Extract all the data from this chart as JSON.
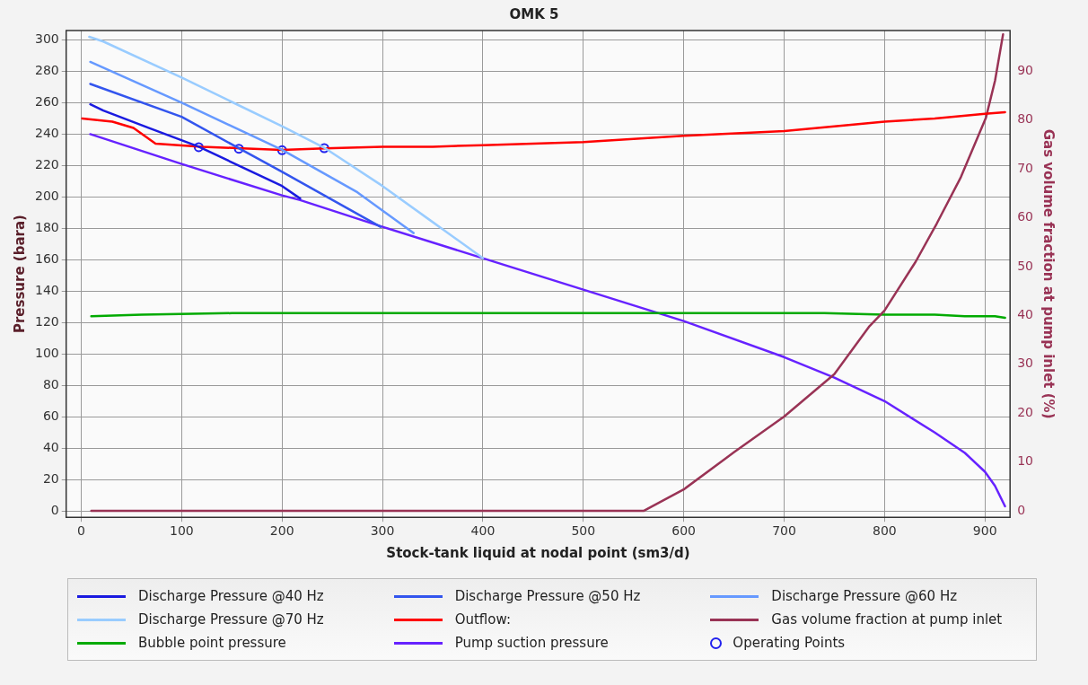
{
  "chart_data": {
    "type": "line",
    "title": "OMK 5",
    "xlabel": "Stock-tank liquid at nodal point (sm3/d)",
    "ylabel": "Pressure (bara)",
    "y2label": "Gas volume fraction at pump inlet (%)",
    "xlim": [
      -15,
      925
    ],
    "xticks": [
      0,
      100,
      200,
      300,
      400,
      500,
      600,
      700,
      800,
      900
    ],
    "ylim": [
      -4,
      306
    ],
    "yticks": [
      0,
      20,
      40,
      60,
      80,
      100,
      120,
      140,
      160,
      180,
      200,
      220,
      240,
      260,
      280,
      300
    ],
    "y2lim": [
      -1.3,
      98.3
    ],
    "y2ticks": [
      0,
      10,
      20,
      30,
      40,
      50,
      60,
      70,
      80,
      90
    ],
    "grid": true,
    "legend": "bottom",
    "marker": "none",
    "line_style": "solid",
    "series": [
      {
        "name": "Discharge Pressure @40 Hz",
        "color": "#1a1ae0",
        "x": [
          9,
          22,
          67,
          117,
          200,
          218
        ],
        "values": [
          259,
          255,
          244,
          232,
          207,
          199
        ]
      },
      {
        "name": "Discharge Pressure @50 Hz",
        "color": "#3355ee",
        "x": [
          9,
          100,
          157,
          200,
          298
        ],
        "values": [
          272,
          251,
          231,
          216,
          181
        ]
      },
      {
        "name": "Discharge Pressure @60 Hz",
        "color": "#6699ff",
        "x": [
          9,
          100,
          200,
          275,
          331
        ],
        "values": [
          286,
          260,
          230,
          203,
          177
        ]
      },
      {
        "name": "Discharge Pressure @70 Hz",
        "color": "#99ccff",
        "x": [
          8,
          22,
          100,
          200,
          243,
          300,
          350,
          400
        ],
        "values": [
          302,
          299,
          276,
          245,
          231,
          207,
          184,
          161
        ]
      },
      {
        "name": "Outflow:",
        "color": "#ff0000",
        "x": [
          1,
          31,
          52,
          74,
          120,
          160,
          200,
          243,
          300,
          350,
          400,
          500,
          600,
          700,
          800,
          850,
          900,
          920
        ],
        "values": [
          250,
          248,
          244,
          234,
          232,
          231,
          230,
          231,
          232,
          232,
          233,
          235,
          239,
          242,
          248,
          250,
          253,
          254
        ]
      },
      {
        "name": "Gas volume fraction at pump inlet",
        "color": "#993355",
        "axis": "y2",
        "x": [
          10,
          560,
          600,
          650,
          700,
          750,
          785,
          800,
          831,
          852,
          876,
          901,
          910,
          918
        ],
        "values": [
          0,
          0,
          4.4,
          12,
          19.3,
          28,
          37.8,
          41,
          51,
          58.8,
          68.3,
          80.5,
          88,
          97.5
        ]
      },
      {
        "name": "Bubble point pressure",
        "color": "#00aa00",
        "x": [
          10,
          60,
          150,
          740,
          800,
          850,
          880,
          910,
          920
        ],
        "values": [
          124,
          125,
          126,
          126,
          125,
          125,
          124,
          124,
          123
        ]
      },
      {
        "name": "Pump suction pressure",
        "color": "#6622ff",
        "x": [
          9,
          100,
          200,
          218,
          300,
          400,
          500,
          600,
          700,
          750,
          800,
          850,
          880,
          900,
          910,
          920
        ],
        "values": [
          240,
          221,
          201,
          198,
          181,
          161,
          141,
          121,
          98,
          85,
          70,
          50,
          37,
          25,
          16,
          3
        ]
      },
      {
        "name": "Operating Points",
        "type": "scatter",
        "marker": "circle",
        "color": "#2222ee",
        "x": [
          117,
          157,
          200,
          242
        ],
        "values": [
          231.7,
          230.7,
          229.8,
          231.1
        ]
      }
    ]
  }
}
